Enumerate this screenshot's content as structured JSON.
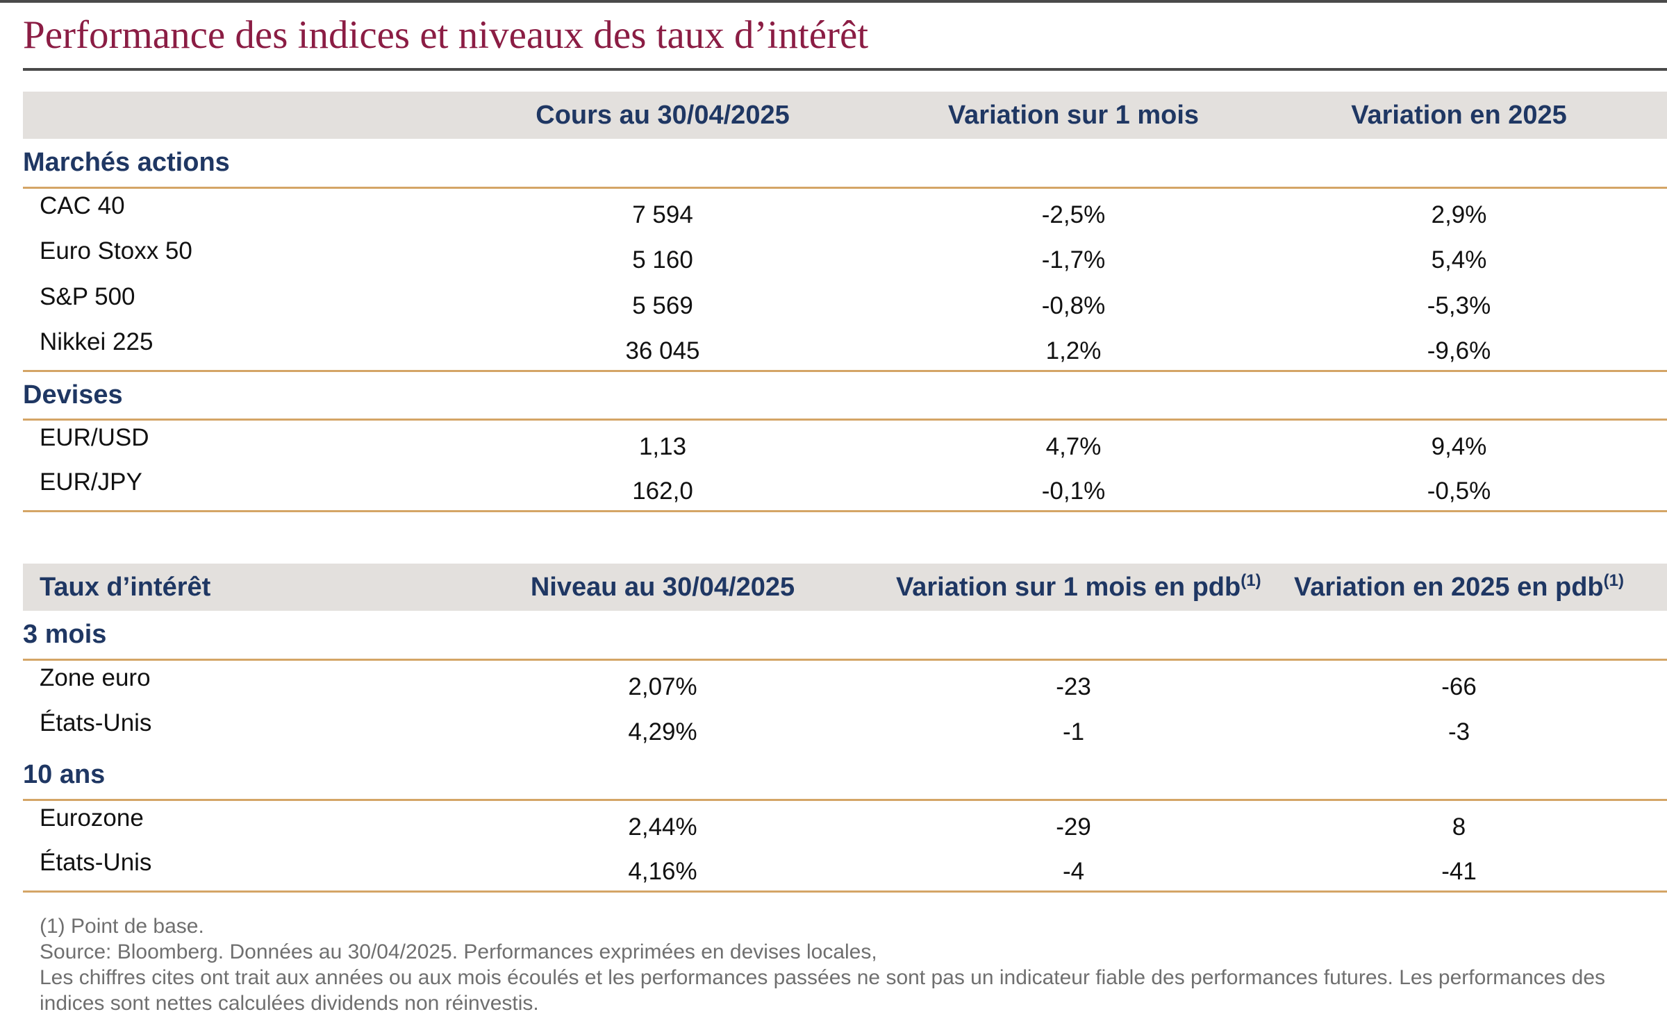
{
  "title": "Performance des indices et niveaux des taux d’intérêt",
  "table1": {
    "headers": [
      "",
      "Cours au 30/04/2025",
      "Variation sur 1 mois",
      "Variation en 2025"
    ],
    "sections": [
      {
        "name": "Marchés actions",
        "rows": [
          {
            "label": "CAC 40",
            "values": [
              "7 594",
              "-2,5%",
              "2,9%"
            ]
          },
          {
            "label": "Euro Stoxx 50",
            "values": [
              "5 160",
              "-1,7%",
              "5,4%"
            ]
          },
          {
            "label": "S&P 500",
            "values": [
              "5 569",
              "-0,8%",
              "-5,3%"
            ]
          },
          {
            "label": "Nikkei 225",
            "values": [
              "36 045",
              "1,2%",
              "-9,6%"
            ]
          }
        ]
      },
      {
        "name": "Devises",
        "rows": [
          {
            "label": "EUR/USD",
            "values": [
              "1,13",
              "4,7%",
              "9,4%"
            ]
          },
          {
            "label": "EUR/JPY",
            "values": [
              "162,0",
              "-0,1%",
              "-0,5%"
            ]
          }
        ]
      }
    ]
  },
  "table2": {
    "headers": [
      "Taux d’intérêt",
      "Niveau au 30/04/2025",
      "Variation sur 1 mois en pdb",
      "Variation en 2025 en pdb"
    ],
    "note_marker": "(1)",
    "sections": [
      {
        "name": "3 mois",
        "rows": [
          {
            "label": "Zone euro",
            "values": [
              "2,07%",
              "-23",
              "-66"
            ]
          },
          {
            "label": "États-Unis",
            "values": [
              "4,29%",
              "-1",
              "-3"
            ]
          }
        ]
      },
      {
        "name": "10 ans",
        "rows": [
          {
            "label": "Eurozone",
            "values": [
              "2,44%",
              "-29",
              "8"
            ]
          },
          {
            "label": "États-Unis",
            "values": [
              "4,16%",
              "-4",
              "-41"
            ]
          }
        ]
      }
    ]
  },
  "footnotes": {
    "note1": "(1) Point de base.",
    "source": "Source: Bloomberg. Données au 30/04/2025. Performances exprimées en devises locales,",
    "disclaimer": "Les chiffres cites ont trait aux années ou aux mois écoulés et les performances passées ne sont pas un indicateur fiable des performances futures. Les performances des indices sont nettes calculées dividends non réinvestis."
  },
  "colors": {
    "title": "#8b1d44",
    "header_text": "#1f3763",
    "header_bg": "#e3e0dd",
    "rule_gold": "#d4a566",
    "rule_dark": "#4a4a4a"
  }
}
